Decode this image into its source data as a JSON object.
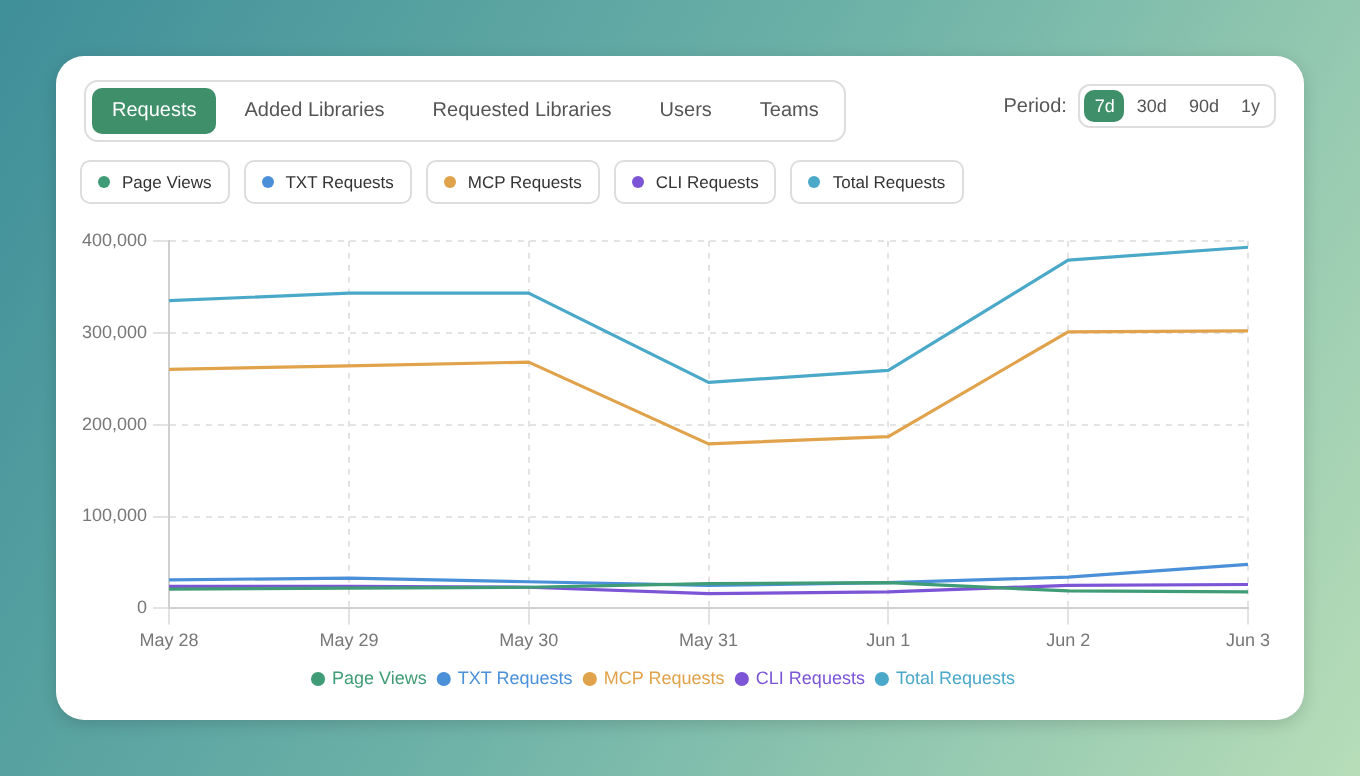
{
  "chart_data": [
    {
      "type": "other",
      "annotations": [
        "Requests",
        "Added Libraries",
        "Requested Libraries",
        "Users",
        "Teams",
        "Period:",
        "7d",
        "30d",
        "90d",
        "1y"
      ]
    },
    {
      "type": "line",
      "categories": [
        "May 28",
        "May 29",
        "May 30",
        "May 31",
        "Jun 1",
        "Jun 2",
        "Jun 3"
      ],
      "series": [
        {
          "name": "Page Views",
          "color": "#3f9c76",
          "values": [
            21000,
            22000,
            23000,
            27000,
            28000,
            19000,
            18000
          ]
        },
        {
          "name": "TXT Requests",
          "color": "#4a90d9",
          "values": [
            31000,
            33000,
            29000,
            25000,
            28000,
            34000,
            48000
          ]
        },
        {
          "name": "MCP Requests",
          "color": "#e0a24a",
          "values": [
            260000,
            264000,
            268000,
            179000,
            187000,
            301000,
            302000
          ]
        },
        {
          "name": "CLI Requests",
          "color": "#7b55d6",
          "values": [
            24000,
            24000,
            23000,
            16000,
            18000,
            25000,
            26000
          ]
        },
        {
          "name": "Total Requests",
          "color": "#4aa8c8",
          "values": [
            335000,
            343000,
            343000,
            246000,
            259000,
            379000,
            393000
          ]
        }
      ],
      "ylim": [
        0,
        400000
      ],
      "yticks": [
        0,
        {
          "value": 100000,
          "label": "100,000"
        },
        {
          "value": 200000,
          "label": "200,000"
        },
        {
          "value": 300000,
          "label": "300,000"
        },
        {
          "value": 400000,
          "label": "400,000"
        }
      ],
      "grid": true,
      "legend": "bottom",
      "marker": "none",
      "line_style": "solid"
    }
  ]
}
